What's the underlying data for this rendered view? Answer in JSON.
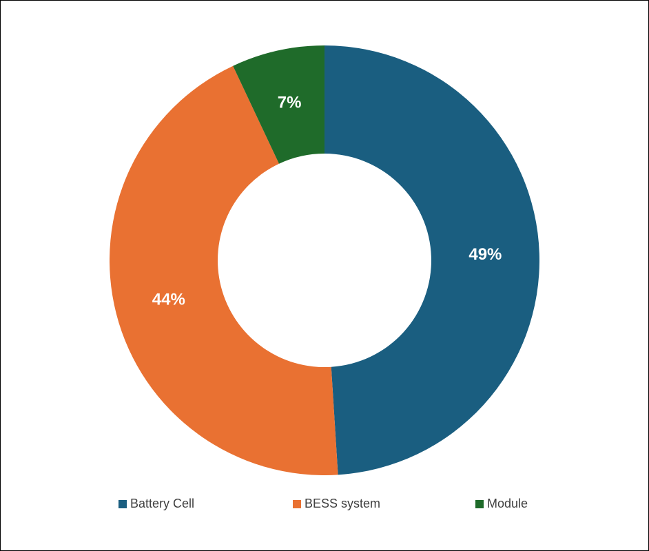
{
  "chart_data": {
    "type": "donut",
    "categories": [
      "Battery Cell",
      "BESS system",
      "Module"
    ],
    "values": [
      49,
      44,
      7
    ],
    "value_labels": [
      "49%",
      "44%",
      "7%"
    ],
    "colors": [
      "#1a5e80",
      "#e97132",
      "#1f6b2a"
    ],
    "legend": "bottom"
  }
}
